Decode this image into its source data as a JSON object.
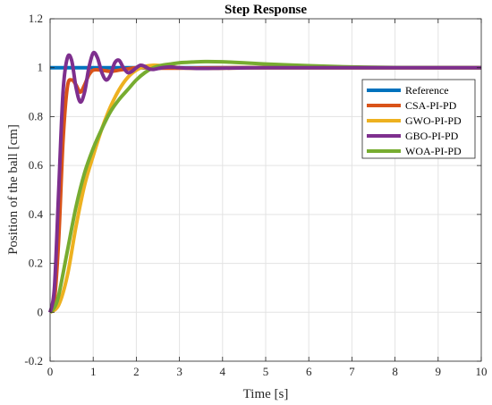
{
  "chart_data": {
    "type": "line",
    "title": "Step Response",
    "xlabel": "Time [s]",
    "ylabel": "Position of the ball [cm]",
    "xlim": [
      0,
      10
    ],
    "ylim": [
      -0.2,
      1.2
    ],
    "xticks": [
      "0",
      "1",
      "2",
      "3",
      "4",
      "5",
      "6",
      "7",
      "8",
      "9",
      "10"
    ],
    "yticks": [
      "-0.2",
      "0",
      "0.2",
      "0.4",
      "0.6",
      "0.8",
      "1",
      "1.2"
    ],
    "grid": true,
    "legend_position": "top-right",
    "series": [
      {
        "name": "Reference",
        "color": "#0072BD",
        "x": [
          0,
          10
        ],
        "y": [
          1,
          1
        ]
      },
      {
        "name": "CSA-PI-PD",
        "color": "#D95319",
        "x": [
          0,
          0.1,
          0.2,
          0.3,
          0.4,
          0.5,
          0.6,
          0.7,
          0.8,
          0.9,
          1.0,
          1.2,
          1.4,
          1.6,
          1.8,
          2.0,
          2.3,
          2.6,
          3.0,
          4.0,
          5.0,
          7.0,
          10.0
        ],
        "y": [
          0,
          0.05,
          0.3,
          0.7,
          0.92,
          0.95,
          0.93,
          0.9,
          0.93,
          0.97,
          0.99,
          0.99,
          0.985,
          0.99,
          0.995,
          1.0,
          1.0,
          0.998,
          0.998,
          1.0,
          1.0,
          1.0,
          1.0
        ]
      },
      {
        "name": "GWO-PI-PD",
        "color": "#EDB120",
        "x": [
          0,
          0.2,
          0.4,
          0.6,
          0.8,
          1.0,
          1.2,
          1.4,
          1.6,
          1.8,
          2.0,
          2.2,
          2.4,
          2.6,
          2.8,
          3.0,
          3.5,
          4.0,
          5.0,
          7.0,
          10.0
        ],
        "y": [
          0,
          0.03,
          0.15,
          0.35,
          0.52,
          0.64,
          0.75,
          0.84,
          0.91,
          0.96,
          0.99,
          1.005,
          1.01,
          1.008,
          1.004,
          1.0,
          0.997,
          0.998,
          1.0,
          1.0,
          1.0
        ]
      },
      {
        "name": "GBO-PI-PD",
        "color": "#7E2F8E",
        "x": [
          0,
          0.1,
          0.2,
          0.3,
          0.4,
          0.5,
          0.6,
          0.7,
          0.8,
          0.9,
          1.0,
          1.1,
          1.2,
          1.3,
          1.4,
          1.5,
          1.6,
          1.7,
          1.8,
          1.9,
          2.0,
          2.1,
          2.2,
          2.3,
          2.4,
          2.6,
          2.8,
          3.0,
          3.5,
          4.0,
          5.0,
          7.0,
          10.0
        ],
        "y": [
          0,
          0.1,
          0.5,
          0.9,
          1.04,
          1.03,
          0.92,
          0.86,
          0.9,
          1.0,
          1.06,
          1.04,
          0.98,
          0.95,
          0.97,
          1.02,
          1.03,
          1.0,
          0.98,
          0.985,
          1.0,
          1.01,
          1.005,
          0.995,
          0.993,
          1.0,
          1.003,
          1.0,
          0.997,
          0.998,
          1.0,
          1.0,
          1.0
        ]
      },
      {
        "name": "WOA-PI-PD",
        "color": "#77AC30",
        "x": [
          0,
          0.1,
          0.2,
          0.4,
          0.6,
          0.8,
          1.0,
          1.2,
          1.4,
          1.6,
          1.8,
          2.0,
          2.2,
          2.4,
          2.6,
          2.8,
          3.0,
          3.3,
          3.6,
          4.0,
          4.5,
          5.0,
          6.0,
          7.0,
          8.0,
          10.0
        ],
        "y": [
          0,
          0.02,
          0.07,
          0.25,
          0.43,
          0.57,
          0.67,
          0.75,
          0.82,
          0.87,
          0.91,
          0.95,
          0.98,
          1.0,
          1.01,
          1.015,
          1.02,
          1.023,
          1.025,
          1.024,
          1.02,
          1.015,
          1.008,
          1.003,
          1.001,
          1.0
        ]
      }
    ]
  }
}
